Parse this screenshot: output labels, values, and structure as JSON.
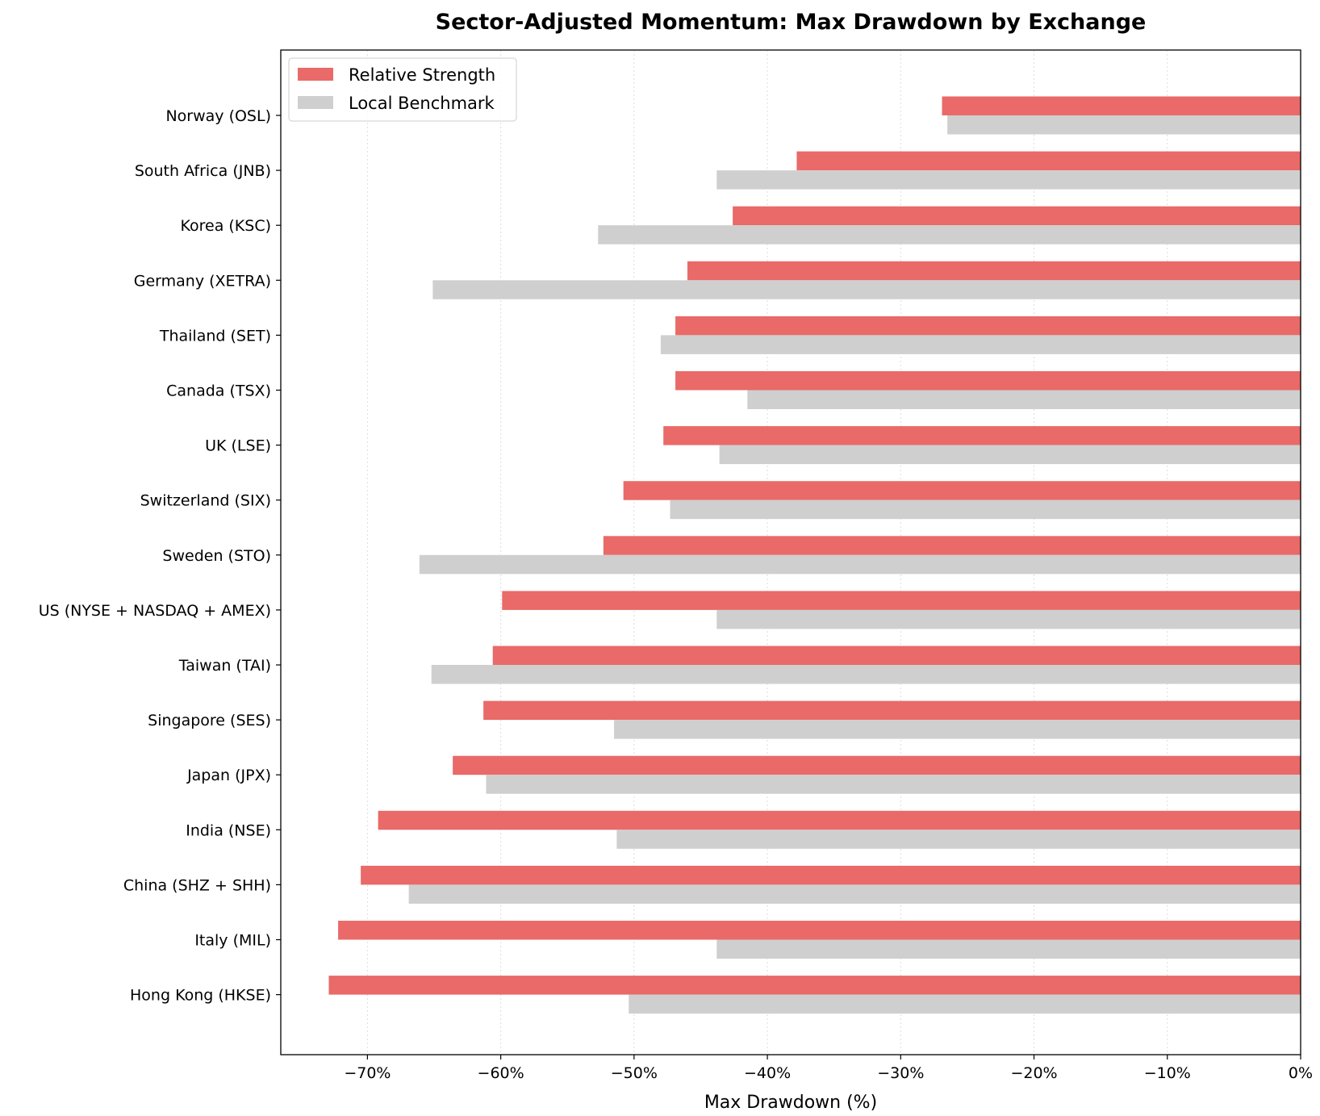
{
  "colors": {
    "relative_strength": "#e96a68",
    "local_benchmark": "#cfcfcf",
    "grid": "#dddddd"
  },
  "chart_data": {
    "type": "bar",
    "orientation": "horizontal",
    "title": "Sector-Adjusted Momentum: Max Drawdown by Exchange",
    "xlabel": "Max Drawdown (%)",
    "ylabel": "",
    "xlim": [
      -76.5,
      0
    ],
    "xticks": [
      -70,
      -60,
      -50,
      -40,
      -30,
      -20,
      -10,
      0
    ],
    "xtick_labels": [
      "−70%",
      "−60%",
      "−50%",
      "−40%",
      "−30%",
      "−20%",
      "−10%",
      "0%"
    ],
    "grid": "vertical dotted",
    "legend_position": "top-left",
    "categories": [
      "Norway (OSL)",
      "South Africa (JNB)",
      "Korea (KSC)",
      "Germany (XETRA)",
      "Thailand (SET)",
      "Canada (TSX)",
      "UK (LSE)",
      "Switzerland (SIX)",
      "Sweden (STO)",
      "US (NYSE + NASDAQ + AMEX)",
      "Taiwan (TAI)",
      "Singapore (SES)",
      "Japan (JPX)",
      "India (NSE)",
      "China (SHZ + SHH)",
      "Italy (MIL)",
      "Hong Kong (HKSE)"
    ],
    "series": [
      {
        "name": "Relative Strength",
        "values": [
          -26.9,
          -37.8,
          -42.6,
          -46.0,
          -46.9,
          -46.9,
          -47.8,
          -50.8,
          -52.3,
          -59.9,
          -60.6,
          -61.3,
          -63.6,
          -69.2,
          -70.5,
          -72.2,
          -72.9
        ]
      },
      {
        "name": "Local Benchmark",
        "values": [
          -26.5,
          -43.8,
          -52.7,
          -65.1,
          -48.0,
          -41.5,
          -43.6,
          -47.3,
          -66.1,
          -43.8,
          -65.2,
          -51.5,
          -61.1,
          -51.3,
          -66.9,
          -43.8,
          -50.4
        ]
      }
    ]
  }
}
